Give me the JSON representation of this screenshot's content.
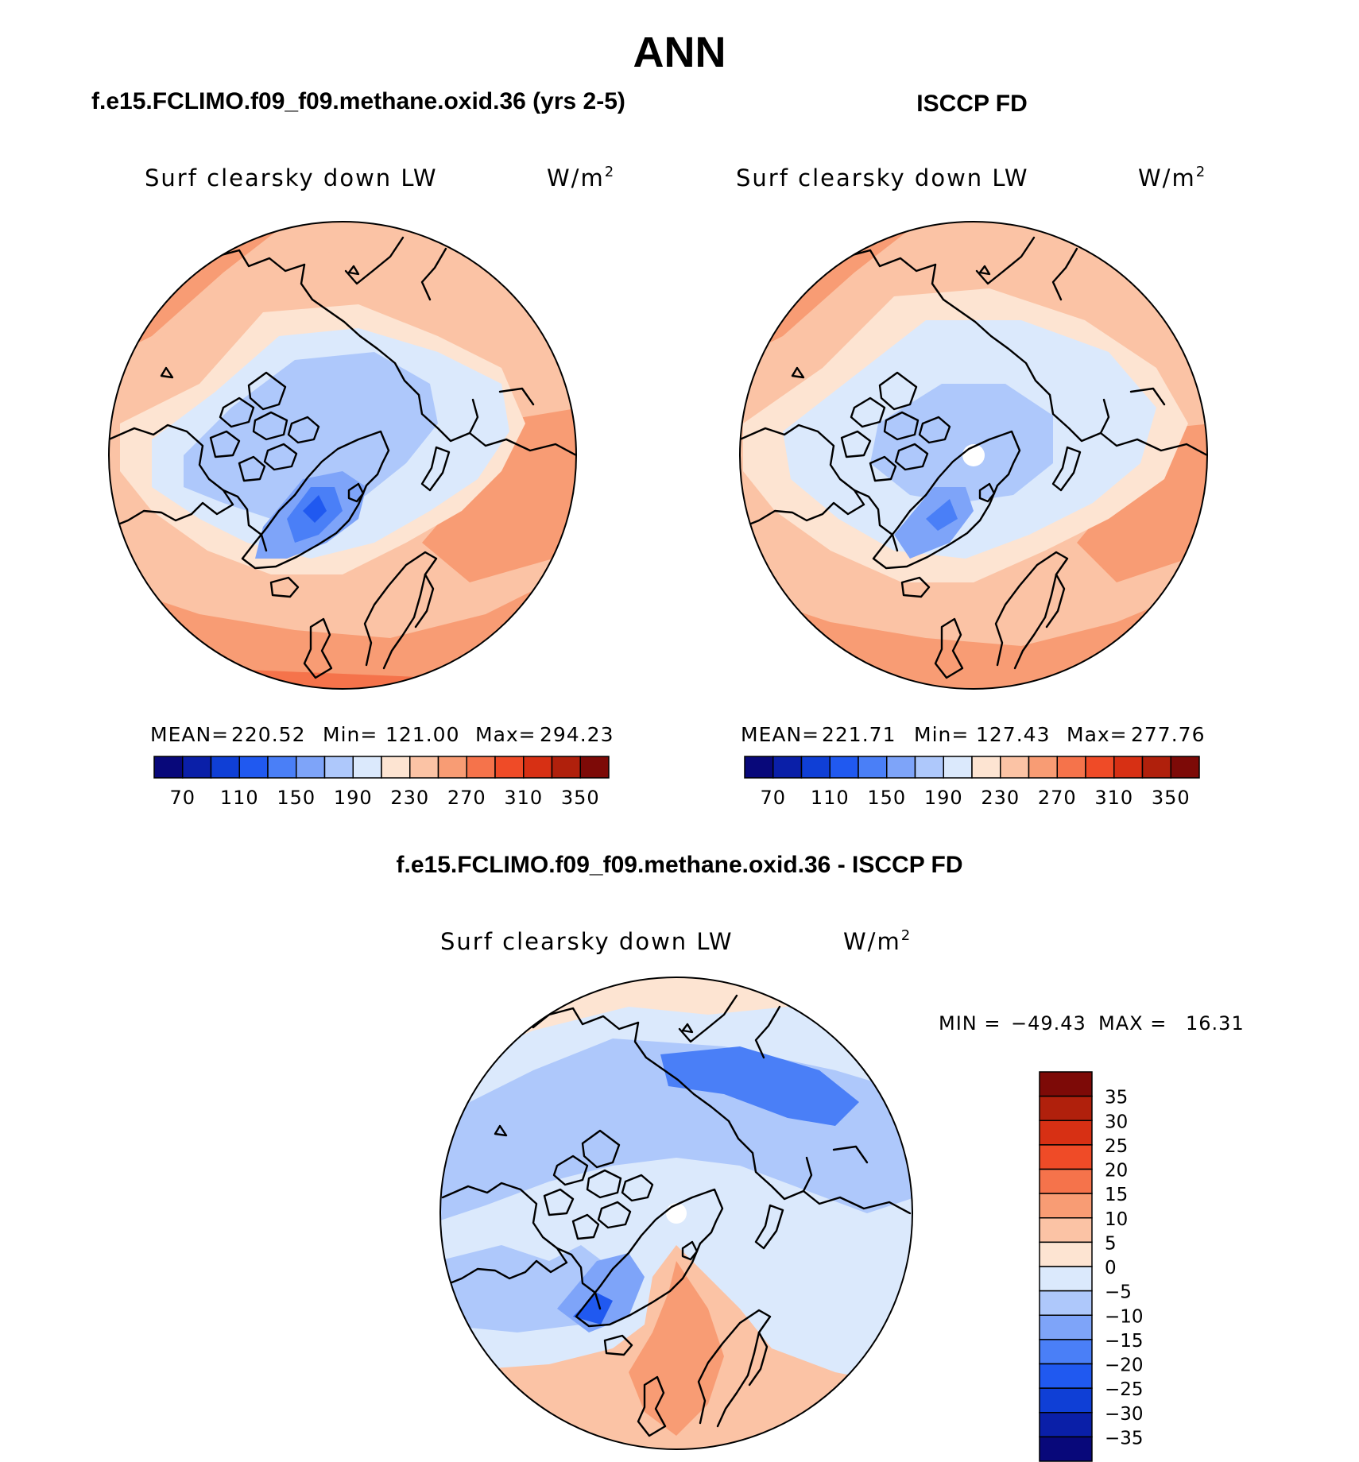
{
  "main_title": "ANN",
  "panels": [
    {
      "heading": "f.e15.FCLIMO.f09_f09.methane.oxid.36 (yrs 2-5)",
      "var_label": "Surf clearsky down LW",
      "units_base": "W/m",
      "units_exp": "2",
      "stats": {
        "mean_label": "MEAN=",
        "mean": "220.52",
        "min_label": "Min=",
        "min": "121.00",
        "max_label": "Max=",
        "max": "294.23"
      }
    },
    {
      "heading": "ISCCP FD",
      "var_label": "Surf clearsky down LW",
      "units_base": "W/m",
      "units_exp": "2",
      "stats": {
        "mean_label": "MEAN=",
        "mean": "221.71",
        "min_label": "Min=",
        "min": "127.43",
        "max_label": "Max=",
        "max": "277.76"
      }
    },
    {
      "heading": "f.e15.FCLIMO.f09_f09.methane.oxid.36 - ISCCP FD",
      "var_label": "Surf clearsky down LW",
      "units_base": "W/m",
      "units_exp": "2",
      "stats": {
        "min_label": "MIN =",
        "min": "−49.43",
        "max_label": "MAX =",
        "max": "16.31"
      }
    }
  ],
  "abs_colorbar": {
    "colors": [
      "#08087a",
      "#0a1fa8",
      "#0f3fd6",
      "#2059f0",
      "#4a7ff7",
      "#7ea4f9",
      "#aec8fb",
      "#dbe9fc",
      "#fde4d2",
      "#fbc3a5",
      "#f89c74",
      "#f5734b",
      "#ef4b27",
      "#d73014",
      "#b0200c",
      "#7d0a07"
    ],
    "ticks": [
      "70",
      "110",
      "150",
      "190",
      "230",
      "270",
      "310",
      "350"
    ]
  },
  "diff_colorbar": {
    "colors": [
      "#08087a",
      "#0a1fa8",
      "#0f3fd6",
      "#2059f0",
      "#4a7ff7",
      "#7ea4f9",
      "#aec8fb",
      "#dbe9fc",
      "#fde4d2",
      "#fbc3a5",
      "#f89c74",
      "#f5734b",
      "#ef4b27",
      "#d73014",
      "#b0200c",
      "#7d0a07"
    ],
    "ticks": [
      "35",
      "30",
      "25",
      "20",
      "15",
      "10",
      "5",
      "0",
      "−5",
      "−10",
      "−15",
      "−20",
      "−25",
      "−30",
      "−35"
    ]
  }
}
